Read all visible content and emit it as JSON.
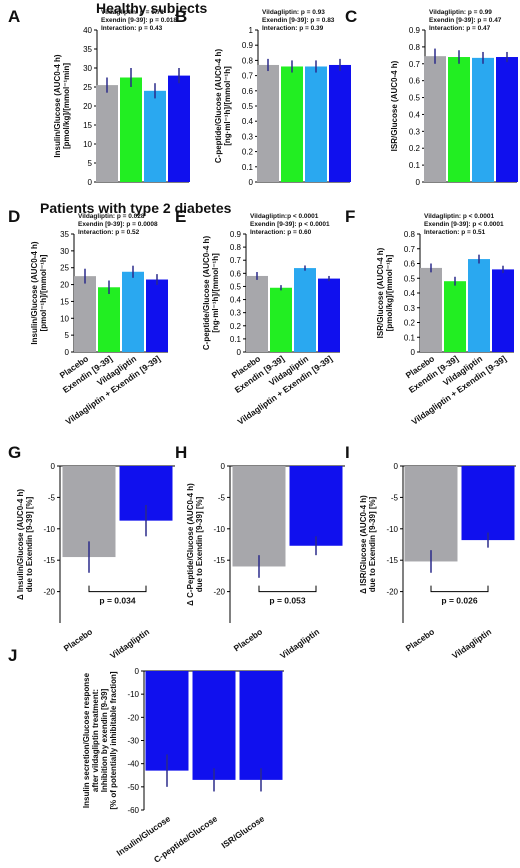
{
  "sections": {
    "healthy": "Healthy subjects",
    "t2d": "Patients with type 2 diabetes"
  },
  "colors": {
    "placebo": "#a7a7ab",
    "exendin": "#22ee22",
    "vildagliptin": "#2aa8f0",
    "combo": "#1010ee",
    "error": "#2a2a8a"
  },
  "chart_data": [
    {
      "id": "A",
      "type": "bar",
      "ylabel": [
        "Insulin/Glucose (AUC0-4 h)",
        "[pmol/kg]/[mmol⁻¹min]"
      ],
      "ylim": [
        0,
        40
      ],
      "yticks": [
        0,
        5,
        10,
        15,
        20,
        25,
        30,
        35,
        40
      ],
      "categories": [
        "Placebo",
        "Exendin [9-39]",
        "Vildagliptin",
        "Vildagliptin + Exendin [9-39]"
      ],
      "values": [
        25.5,
        27.5,
        24.0,
        28.0
      ],
      "errors": [
        2.0,
        2.5,
        2.0,
        2.0
      ],
      "stats": [
        "Vildagliptin: p = 0.71",
        "Exendin [9-39]: p = 0.018",
        "Interaction: p = 0.43"
      ]
    },
    {
      "id": "B",
      "type": "bar",
      "ylabel": [
        "C-peptide/Glucose (AUC0-4 h)",
        "[ng·ml⁻¹h]/[mmol⁻¹h]"
      ],
      "ylim": [
        0,
        1.0
      ],
      "yticks": [
        0,
        0.1,
        0.2,
        0.3,
        0.4,
        0.5,
        0.6,
        0.7,
        0.8,
        0.9,
        1
      ],
      "categories": [
        "Placebo",
        "Exendin [9-39]",
        "Vildagliptin",
        "Vildagliptin + Exendin [9-39]"
      ],
      "values": [
        0.77,
        0.76,
        0.76,
        0.77
      ],
      "errors": [
        0.04,
        0.04,
        0.04,
        0.04
      ],
      "stats": [
        "Vildagliptin: p = 0.93",
        "Exendin [9-39]: p = 0.83",
        "Interaction: p = 0.39"
      ]
    },
    {
      "id": "C",
      "type": "bar",
      "ylabel": [
        "ISR/Glucose (AUC0-4 h)",
        ""
      ],
      "ylim": [
        0,
        0.9
      ],
      "yticks": [
        0,
        0.1,
        0.2,
        0.3,
        0.4,
        0.5,
        0.6,
        0.7,
        0.8,
        0.9
      ],
      "categories": [
        "Placebo",
        "Exendin [9-39]",
        "Vildagliptin",
        "Vildagliptin + Exendin [9-39]"
      ],
      "values": [
        0.745,
        0.74,
        0.735,
        0.74
      ],
      "errors": [
        0.045,
        0.04,
        0.035,
        0.03
      ],
      "stats": [
        "Vildagliptin: p = 0.99",
        "Exendin [9-39]: p = 0.47",
        "Interaction: p = 0.47"
      ]
    },
    {
      "id": "D",
      "type": "bar",
      "ylabel": [
        "Insulin/Glucose (AUC0-4 h)",
        "[pmol⁻¹h]/[mmol⁻¹h]"
      ],
      "ylim": [
        0,
        35
      ],
      "yticks": [
        0,
        5,
        10,
        15,
        20,
        25,
        30,
        35
      ],
      "categories": [
        "Placebo",
        "Exendin [9-39]",
        "Vildagliptin",
        "Vildagliptin + Exendin [9-39]"
      ],
      "values": [
        22.5,
        19.2,
        23.8,
        21.5
      ],
      "errors": [
        2.2,
        2.0,
        1.8,
        1.6
      ],
      "stats": [
        "Vildagliptin: p = 0.028",
        "Exendin [9-39]: p = 0.0008",
        "Interaction: p = 0.52"
      ]
    },
    {
      "id": "E",
      "type": "bar",
      "ylabel": [
        "C-peptide/Glucose (AUC0-4 h)",
        "[ng·ml⁻¹h]/[mmol⁻¹h]"
      ],
      "ylim": [
        0,
        0.9
      ],
      "yticks": [
        0,
        0.1,
        0.2,
        0.3,
        0.4,
        0.5,
        0.6,
        0.7,
        0.8,
        0.9
      ],
      "categories": [
        "Placebo",
        "Exendin [9-39]",
        "Vildagliptin",
        "Vildagliptin + Exendin [9-39]"
      ],
      "values": [
        0.58,
        0.49,
        0.64,
        0.56
      ],
      "errors": [
        0.03,
        0.02,
        0.02,
        0.02
      ],
      "stats": [
        "Vildagliptin:p < 0.0001",
        "Exendin [9-39]: p < 0.0001",
        "Interaction: p = 0.60"
      ]
    },
    {
      "id": "F",
      "type": "bar",
      "ylabel": [
        "ISR/Glucose (AUC0-4 h)",
        "[pmol/kg]/[mmol⁻¹h]"
      ],
      "ylim": [
        0,
        0.8
      ],
      "yticks": [
        0,
        0.1,
        0.2,
        0.3,
        0.4,
        0.5,
        0.6,
        0.7,
        0.8
      ],
      "categories": [
        "Placebo",
        "Exendin [9-39]",
        "Vildagliptin",
        "Vildagliptin + Exendin [9-39]"
      ],
      "values": [
        0.57,
        0.48,
        0.63,
        0.56
      ],
      "errors": [
        0.03,
        0.03,
        0.03,
        0.025
      ],
      "stats": [
        "Vildagliptin: p < 0.0001",
        "Exendin [9-39]: p < 0.0001",
        "Interaction: p = 0.51"
      ]
    },
    {
      "id": "G",
      "type": "bar",
      "ylabel": [
        "Δ Insulin/Glucose (AUC0-4 h)",
        "due to Exendin [9-39] [%]"
      ],
      "ylim": [
        -25,
        0
      ],
      "yticks": [
        0,
        -5,
        -10,
        -15,
        -20
      ],
      "categories": [
        "Placebo",
        "Vildagliptin"
      ],
      "values": [
        -14.5,
        -8.7
      ],
      "errors": [
        2.5,
        2.5
      ],
      "pvalue": "p = 0.034"
    },
    {
      "id": "H",
      "type": "bar",
      "ylabel": [
        "Δ C-Peptide/Glucose (AUC0-4 h)",
        "due to Exendin [9-39] [%]"
      ],
      "ylim": [
        -25,
        0
      ],
      "yticks": [
        0,
        -5,
        -10,
        -15,
        -20
      ],
      "categories": [
        "Placebo",
        "Vildagliptin"
      ],
      "values": [
        -16.0,
        -12.7
      ],
      "errors": [
        1.8,
        1.5
      ],
      "pvalue": "p = 0.053"
    },
    {
      "id": "I",
      "type": "bar",
      "ylabel": [
        "Δ ISR/Glucose (AUC0-4 h)",
        "due to Exendin [9-39] [%]"
      ],
      "ylim": [
        -25,
        0
      ],
      "yticks": [
        0,
        -5,
        -10,
        -15,
        -20
      ],
      "categories": [
        "Placebo",
        "Vildagliptin"
      ],
      "values": [
        -15.2,
        -11.8
      ],
      "errors": [
        1.8,
        1.2
      ],
      "pvalue": "p = 0.026"
    },
    {
      "id": "J",
      "type": "bar",
      "ylabel": [
        "Insulin secretion/Glucose response",
        "after vildagliptin treatment:",
        "Inhibition by exendin [9-39]",
        "[% of potentially inhibitable fraction]"
      ],
      "ylim": [
        -60,
        0
      ],
      "yticks": [
        0,
        -10,
        -20,
        -30,
        -40,
        -50,
        -60
      ],
      "categories": [
        "Insulin/Glucose",
        "C-peptide/Glucose",
        "ISR/Glucose"
      ],
      "values": [
        -43,
        -47,
        -47
      ],
      "errors": [
        7,
        5,
        5
      ]
    }
  ]
}
